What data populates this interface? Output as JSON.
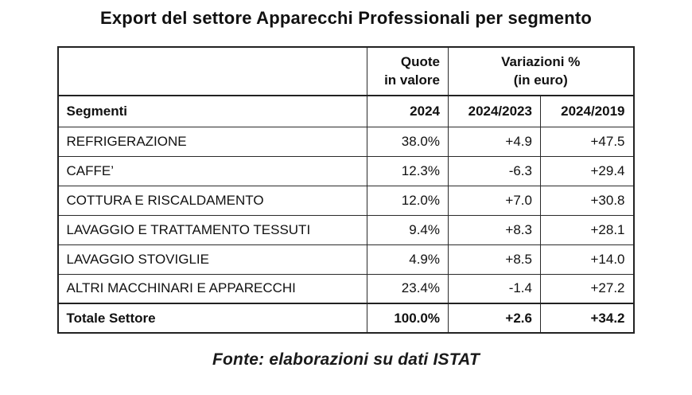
{
  "title": "Export del settore Apparecchi Professionali per segmento",
  "footer": "Fonte: elaborazioni su dati ISTAT",
  "colors": {
    "background": "#ffffff",
    "text": "#111111",
    "border": "#222222"
  },
  "table": {
    "group_headers": {
      "quote": "Quote\nin valore",
      "variazioni": "Variazioni %\n(in euro)"
    },
    "columns": {
      "segment": "Segmenti",
      "year": "2024",
      "var1": "2024/2023",
      "var2": "2024/2019"
    },
    "rows": [
      {
        "segment": "REFRIGERAZIONE",
        "quota": "38.0%",
        "var1": "+4.9",
        "var2": "+47.5"
      },
      {
        "segment": "CAFFE’",
        "quota": "12.3%",
        "var1": "-6.3",
        "var2": "+29.4"
      },
      {
        "segment": "COTTURA E RISCALDAMENTO",
        "quota": "12.0%",
        "var1": "+7.0",
        "var2": "+30.8"
      },
      {
        "segment": "LAVAGGIO E TRATTAMENTO TESSUTI",
        "quota": "9.4%",
        "var1": "+8.3",
        "var2": "+28.1"
      },
      {
        "segment": "LAVAGGIO STOVIGLIE",
        "quota": "4.9%",
        "var1": "+8.5",
        "var2": "+14.0"
      },
      {
        "segment": "ALTRI MACCHINARI E APPARECCHI",
        "quota": "23.4%",
        "var1": "-1.4",
        "var2": "+27.2"
      },
      {
        "segment": "Totale Settore",
        "quota": "100.0%",
        "var1": "+2.6",
        "var2": "+34.2"
      }
    ]
  },
  "chart_data": {
    "type": "table",
    "title": "Export del settore Apparecchi Professionali per segmento",
    "columns": [
      "Segmenti",
      "Quote in valore 2024 (%)",
      "Variazioni % in euro 2024/2023",
      "Variazioni % in euro 2024/2019"
    ],
    "rows": [
      [
        "REFRIGERAZIONE",
        38.0,
        4.9,
        47.5
      ],
      [
        "CAFFE’",
        12.3,
        -6.3,
        29.4
      ],
      [
        "COTTURA E RISCALDAMENTO",
        12.0,
        7.0,
        30.8
      ],
      [
        "LAVAGGIO E TRATTAMENTO TESSUTI",
        9.4,
        8.3,
        28.1
      ],
      [
        "LAVAGGIO STOVIGLIE",
        4.9,
        8.5,
        14.0
      ],
      [
        "ALTRI MACCHINARI E APPARECCHI",
        23.4,
        -1.4,
        27.2
      ],
      [
        "Totale Settore",
        100.0,
        2.6,
        34.2
      ]
    ],
    "source": "Fonte: elaborazioni su dati ISTAT"
  }
}
